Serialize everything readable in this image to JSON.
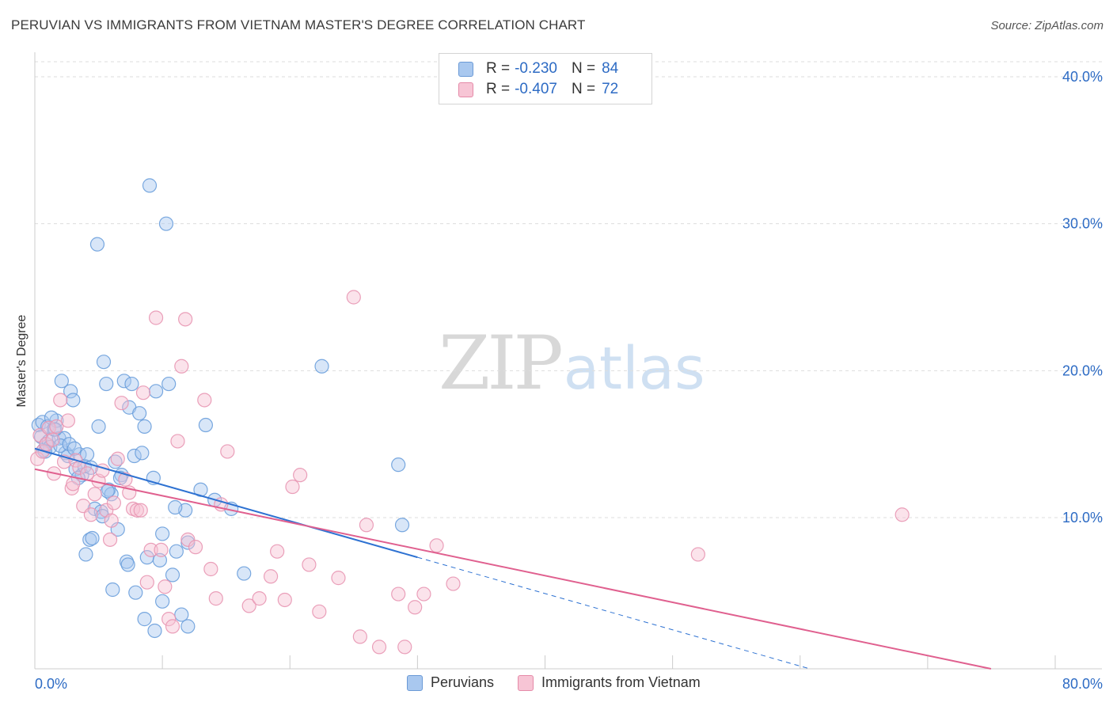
{
  "title": "PERUVIAN VS IMMIGRANTS FROM VIETNAM MASTER'S DEGREE CORRELATION CHART",
  "source": "Source: ZipAtlas.com",
  "watermark": {
    "zip": "ZIP",
    "atlas": "atlas"
  },
  "legend": {
    "r_label": "R =",
    "n_label": "N =",
    "rows": [
      {
        "r": "-0.230",
        "n": "84",
        "color": "#a9c8ef",
        "border": "#6b9ad6"
      },
      {
        "r": "-0.407",
        "n": "72",
        "color": "#f7c5d5",
        "border": "#e58aa8"
      }
    ]
  },
  "colors": {
    "blue_fill": "#a9c8ef",
    "blue_stroke": "#6a9fdc",
    "blue_line": "#2e72d2",
    "pink_fill": "#f7c0d2",
    "pink_stroke": "#e896b2",
    "pink_line": "#e0608f",
    "tick_text": "#2d6bc4",
    "grid": "#dddddd"
  },
  "chart_data": {
    "type": "scatter",
    "title": "PERUVIAN VS IMMIGRANTS FROM VIETNAM MASTER'S DEGREE CORRELATION CHART",
    "xlabel": "",
    "ylabel": "Master's Degree",
    "xlim": [
      0,
      80
    ],
    "ylim": [
      0,
      42
    ],
    "x_tick_labels": [
      "0.0%",
      "80.0%"
    ],
    "y_ticks": [
      10,
      20,
      30,
      40
    ],
    "y_tick_labels": [
      "10.0%",
      "20.0%",
      "30.0%",
      "40.0%"
    ],
    "series": [
      {
        "name": "Peruvians",
        "r": -0.23,
        "n": 84,
        "trend": {
          "x0": 0,
          "y0": 14.7,
          "x1": 30,
          "y1": 7.3,
          "dash_to_x": 80,
          "dash_to_y": -5.0
        },
        "points": [
          [
            0.3,
            16.3
          ],
          [
            0.5,
            15.5
          ],
          [
            0.6,
            16.5
          ],
          [
            0.7,
            14.6
          ],
          [
            0.9,
            15.0
          ],
          [
            1.0,
            16.2
          ],
          [
            1.1,
            15.2
          ],
          [
            1.2,
            14.8
          ],
          [
            1.5,
            16.0
          ],
          [
            1.7,
            16.6
          ],
          [
            1.9,
            15.4
          ],
          [
            2.1,
            19.3
          ],
          [
            2.3,
            15.4
          ],
          [
            2.4,
            14.4
          ],
          [
            2.6,
            14.2
          ],
          [
            2.8,
            18.6
          ],
          [
            3.0,
            18.0
          ],
          [
            3.2,
            13.3
          ],
          [
            3.5,
            14.3
          ],
          [
            3.7,
            12.9
          ],
          [
            3.9,
            13.5
          ],
          [
            4.1,
            14.3
          ],
          [
            4.3,
            8.5
          ],
          [
            4.5,
            8.6
          ],
          [
            4.7,
            10.6
          ],
          [
            4.9,
            28.6
          ],
          [
            5.0,
            16.2
          ],
          [
            5.2,
            10.4
          ],
          [
            5.4,
            20.6
          ],
          [
            5.6,
            19.1
          ],
          [
            5.8,
            11.9
          ],
          [
            6.0,
            11.6
          ],
          [
            6.3,
            13.8
          ],
          [
            6.5,
            9.2
          ],
          [
            6.8,
            12.9
          ],
          [
            7.0,
            19.3
          ],
          [
            7.2,
            7.0
          ],
          [
            7.4,
            17.5
          ],
          [
            7.6,
            19.1
          ],
          [
            7.8,
            14.2
          ],
          [
            8.2,
            17.1
          ],
          [
            8.4,
            14.4
          ],
          [
            8.6,
            16.2
          ],
          [
            8.8,
            7.3
          ],
          [
            9.0,
            32.6
          ],
          [
            9.3,
            12.7
          ],
          [
            9.5,
            18.6
          ],
          [
            9.8,
            7.1
          ],
          [
            10.0,
            8.9
          ],
          [
            10.3,
            30.0
          ],
          [
            10.5,
            19.1
          ],
          [
            10.8,
            6.1
          ],
          [
            11.1,
            7.7
          ],
          [
            11.5,
            3.4
          ],
          [
            11.8,
            10.5
          ],
          [
            12.0,
            2.6
          ],
          [
            13.0,
            11.9
          ],
          [
            13.4,
            16.3
          ],
          [
            14.1,
            11.2
          ],
          [
            15.4,
            10.6
          ],
          [
            16.4,
            6.2
          ],
          [
            22.5,
            20.3
          ],
          [
            28.5,
            13.6
          ],
          [
            28.8,
            9.5
          ],
          [
            1.3,
            16.8
          ],
          [
            2.0,
            14.9
          ],
          [
            3.4,
            12.7
          ],
          [
            4.0,
            7.5
          ],
          [
            5.3,
            10.1
          ],
          [
            6.1,
            5.1
          ],
          [
            7.3,
            6.8
          ],
          [
            7.9,
            4.9
          ],
          [
            8.6,
            3.1
          ],
          [
            9.4,
            2.3
          ],
          [
            10.0,
            4.3
          ],
          [
            11.0,
            10.7
          ],
          [
            12.0,
            8.3
          ],
          [
            0.8,
            14.5
          ],
          [
            1.6,
            16.0
          ],
          [
            2.7,
            15.0
          ],
          [
            3.1,
            14.7
          ],
          [
            4.4,
            13.4
          ],
          [
            5.7,
            11.8
          ],
          [
            6.7,
            12.7
          ]
        ]
      },
      {
        "name": "Immigrants from Vietnam",
        "r": -0.407,
        "n": 72,
        "trend": {
          "x0": 0,
          "y0": 13.3,
          "x1": 80,
          "y1": -1.2
        },
        "points": [
          [
            0.2,
            14.0
          ],
          [
            0.4,
            15.6
          ],
          [
            0.6,
            14.5
          ],
          [
            0.9,
            15.0
          ],
          [
            1.1,
            16.1
          ],
          [
            1.4,
            15.3
          ],
          [
            1.7,
            16.2
          ],
          [
            2.0,
            18.0
          ],
          [
            2.3,
            13.8
          ],
          [
            2.6,
            16.6
          ],
          [
            2.9,
            12.0
          ],
          [
            3.2,
            13.9
          ],
          [
            3.5,
            13.4
          ],
          [
            3.8,
            10.8
          ],
          [
            4.1,
            13.0
          ],
          [
            4.4,
            10.2
          ],
          [
            4.7,
            11.6
          ],
          [
            5.0,
            12.5
          ],
          [
            5.3,
            13.2
          ],
          [
            5.6,
            10.5
          ],
          [
            5.9,
            8.5
          ],
          [
            6.2,
            11.0
          ],
          [
            6.5,
            14.0
          ],
          [
            6.8,
            17.8
          ],
          [
            7.1,
            12.6
          ],
          [
            7.4,
            11.7
          ],
          [
            7.7,
            10.6
          ],
          [
            8.0,
            10.5
          ],
          [
            8.5,
            18.5
          ],
          [
            8.8,
            5.6
          ],
          [
            9.1,
            7.8
          ],
          [
            9.5,
            23.6
          ],
          [
            9.9,
            7.8
          ],
          [
            10.2,
            5.3
          ],
          [
            10.5,
            3.1
          ],
          [
            10.8,
            2.6
          ],
          [
            11.2,
            15.2
          ],
          [
            11.5,
            20.3
          ],
          [
            11.8,
            23.5
          ],
          [
            12.0,
            8.5
          ],
          [
            12.6,
            8.0
          ],
          [
            13.3,
            18.0
          ],
          [
            13.8,
            6.5
          ],
          [
            14.2,
            4.5
          ],
          [
            14.6,
            10.9
          ],
          [
            15.1,
            14.5
          ],
          [
            16.8,
            4.0
          ],
          [
            17.6,
            4.5
          ],
          [
            18.5,
            6.0
          ],
          [
            19.0,
            7.7
          ],
          [
            19.6,
            4.4
          ],
          [
            20.2,
            12.1
          ],
          [
            20.8,
            12.9
          ],
          [
            21.5,
            6.8
          ],
          [
            22.3,
            3.6
          ],
          [
            23.8,
            5.9
          ],
          [
            25.0,
            25.0
          ],
          [
            25.5,
            1.9
          ],
          [
            26.0,
            9.5
          ],
          [
            27.0,
            1.2
          ],
          [
            28.5,
            4.8
          ],
          [
            29.0,
            1.2
          ],
          [
            29.8,
            3.9
          ],
          [
            30.5,
            4.8
          ],
          [
            31.5,
            8.1
          ],
          [
            32.8,
            5.5
          ],
          [
            52.0,
            7.5
          ],
          [
            68.0,
            10.2
          ],
          [
            1.5,
            13.0
          ],
          [
            3.0,
            12.3
          ],
          [
            6.0,
            9.8
          ],
          [
            8.3,
            10.5
          ]
        ]
      }
    ]
  },
  "bottom_legend": [
    "Peruvians",
    "Immigrants from Vietnam"
  ],
  "axis_labels": {
    "x_left": "0.0%",
    "x_right": "80.0%"
  }
}
